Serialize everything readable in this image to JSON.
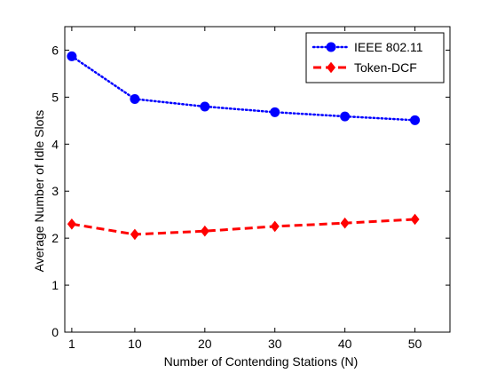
{
  "chart_data": {
    "type": "line",
    "xlabel": "Number of Contending Stations (N)",
    "ylabel": "Average Number of Idle Slots",
    "xlim": [
      0,
      55
    ],
    "ylim": [
      0,
      6.5
    ],
    "x_ticks": [
      1,
      10,
      20,
      30,
      40,
      50
    ],
    "y_ticks": [
      0,
      1,
      2,
      3,
      4,
      5,
      6
    ],
    "grid": false,
    "legend_position": "top-right",
    "x": [
      1,
      10,
      20,
      30,
      40,
      50
    ],
    "series": [
      {
        "name": "IEEE 802.11",
        "values": [
          5.87,
          4.96,
          4.8,
          4.68,
          4.59,
          4.51
        ],
        "color": "#0000ff",
        "line_style": "dotted",
        "marker": "circle"
      },
      {
        "name": "Token-DCF",
        "values": [
          2.3,
          2.08,
          2.15,
          2.25,
          2.32,
          2.4
        ],
        "color": "#ff0000",
        "line_style": "dashed",
        "marker": "diamond"
      }
    ]
  }
}
